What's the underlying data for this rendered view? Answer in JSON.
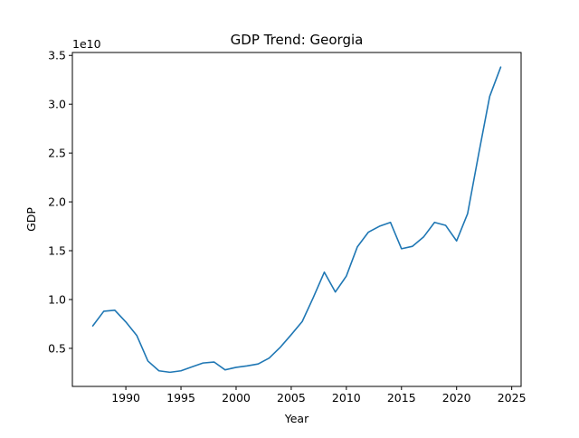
{
  "chart_data": {
    "type": "line",
    "title": "GDP Trend: Georgia",
    "xlabel": "Year",
    "ylabel": "GDP",
    "y_offset_label": "1e10",
    "y_scale": 10000000000.0,
    "xlim": [
      1985.15,
      2025.85
    ],
    "ylim": [
      1100000000.0,
      35300000000.0
    ],
    "x_ticks": [
      1990,
      1995,
      2000,
      2005,
      2010,
      2015,
      2020,
      2025
    ],
    "x_tick_labels": [
      "1990",
      "1995",
      "2000",
      "2005",
      "2010",
      "2015",
      "2020",
      "2025"
    ],
    "y_ticks": [
      5000000000.0,
      10000000000.0,
      15000000000.0,
      20000000000.0,
      25000000000.0,
      30000000000.0,
      35000000000.0
    ],
    "y_tick_labels": [
      "0.5",
      "1.0",
      "1.5",
      "2.0",
      "2.5",
      "3.0",
      "3.5"
    ],
    "grid": false,
    "legend": false,
    "series": [
      {
        "color": "#1f77b4",
        "x": [
          1987,
          1988,
          1989,
          1990,
          1991,
          1992,
          1993,
          1994,
          1995,
          1996,
          1997,
          1998,
          1999,
          2000,
          2001,
          2002,
          2003,
          2004,
          2005,
          2006,
          2007,
          2008,
          2009,
          2010,
          2011,
          2012,
          2013,
          2014,
          2015,
          2016,
          2017,
          2018,
          2019,
          2020,
          2021,
          2022,
          2023,
          2024
        ],
        "values": [
          7300000000.0,
          8800000000.0,
          8900000000.0,
          7700000000.0,
          6300000000.0,
          3700000000.0,
          2700000000.0,
          2550000000.0,
          2700000000.0,
          3100000000.0,
          3500000000.0,
          3600000000.0,
          2800000000.0,
          3050000000.0,
          3200000000.0,
          3400000000.0,
          4000000000.0,
          5100000000.0,
          6400000000.0,
          7750000000.0,
          10200000000.0,
          12800000000.0,
          10770000000.0,
          12400000000.0,
          15400000000.0,
          16900000000.0,
          17500000000.0,
          17900000000.0,
          15200000000.0,
          15450000000.0,
          16400000000.0,
          17900000000.0,
          17600000000.0,
          16000000000.0,
          18800000000.0,
          24900000000.0,
          30800000000.0,
          33800000000.0
        ]
      }
    ]
  }
}
